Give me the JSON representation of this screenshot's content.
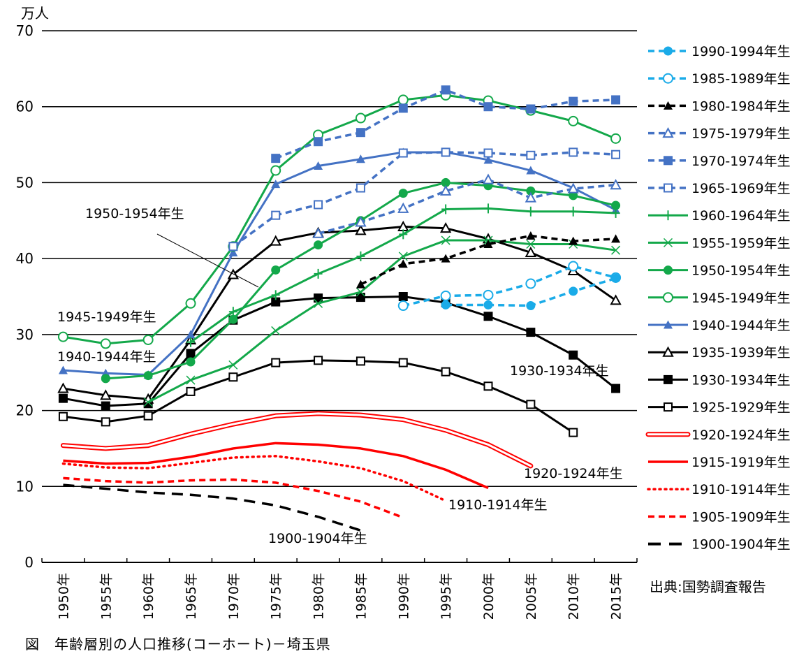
{
  "chart_data": {
    "type": "line",
    "title": "",
    "caption": "図　年齢層別の人口推移(コーホート)－埼玉県",
    "source": "出典:国勢調査報告",
    "ylabel": "万人",
    "xlabel": "",
    "ylim": [
      0,
      70
    ],
    "yticks": [
      0,
      10,
      20,
      30,
      40,
      50,
      60,
      70
    ],
    "grid": true,
    "legend_position": "right",
    "categories": [
      "1950年",
      "1955年",
      "1960年",
      "1965年",
      "1970年",
      "1975年",
      "1980年",
      "1985年",
      "1990年",
      "1995年",
      "2000年",
      "2005年",
      "2010年",
      "2015年"
    ],
    "series": [
      {
        "name": "1990-1994年生",
        "color": "#1aabe8",
        "dash": "dash",
        "marker": "circle-filled",
        "values": [
          null,
          null,
          null,
          null,
          null,
          null,
          null,
          null,
          null,
          33.9,
          33.9,
          33.8,
          35.7,
          37.4
        ]
      },
      {
        "name": "1985-1989年生",
        "color": "#1aabe8",
        "dash": "dash",
        "marker": "circle-open",
        "values": [
          null,
          null,
          null,
          null,
          null,
          null,
          null,
          null,
          33.8,
          35.1,
          35.2,
          36.7,
          39.0,
          37.5
        ]
      },
      {
        "name": "1980-1984年生",
        "color": "#000000",
        "dash": "dash",
        "marker": "triangle-filled",
        "values": [
          null,
          null,
          null,
          null,
          null,
          null,
          null,
          36.6,
          39.3,
          40.0,
          41.9,
          43.0,
          42.3,
          42.6
        ]
      },
      {
        "name": "1975-1979年生",
        "color": "#4472c4",
        "dash": "dash",
        "marker": "triangle-open",
        "values": [
          null,
          null,
          null,
          null,
          null,
          null,
          43.3,
          44.8,
          46.6,
          48.9,
          50.4,
          48.0,
          49.2,
          49.7
        ]
      },
      {
        "name": "1970-1974年生",
        "color": "#4472c4",
        "dash": "dash",
        "marker": "square-filled",
        "values": [
          null,
          null,
          null,
          null,
          null,
          53.2,
          55.4,
          56.6,
          59.8,
          62.2,
          60.0,
          59.7,
          60.7,
          60.9
        ]
      },
      {
        "name": "1965-1969年生",
        "color": "#4472c4",
        "dash": "dash",
        "marker": "square-open",
        "values": [
          null,
          null,
          null,
          null,
          41.6,
          45.7,
          47.1,
          49.3,
          53.9,
          54.0,
          53.9,
          53.6,
          54.0,
          53.7
        ]
      },
      {
        "name": "1960-1964年生",
        "color": "#13a84a",
        "dash": "solid",
        "marker": "plus",
        "values": [
          null,
          null,
          null,
          29.0,
          33.0,
          35.2,
          38.0,
          40.3,
          43.2,
          46.5,
          46.6,
          46.2,
          46.2,
          46.0
        ]
      },
      {
        "name": "1955-1959年生",
        "color": "#13a84a",
        "dash": "solid",
        "marker": "x",
        "values": [
          null,
          null,
          21.1,
          24.0,
          26.0,
          30.5,
          34.1,
          35.6,
          40.3,
          42.4,
          42.4,
          41.9,
          41.9,
          41.1
        ]
      },
      {
        "name": "1950-1954年生",
        "color": "#13a84a",
        "dash": "solid",
        "marker": "circle-filled",
        "values": [
          null,
          24.2,
          24.6,
          26.4,
          32.0,
          38.5,
          41.8,
          45.0,
          48.6,
          50.0,
          49.6,
          48.9,
          48.3,
          47.0
        ]
      },
      {
        "name": "1945-1949年生",
        "color": "#13a84a",
        "dash": "solid",
        "marker": "circle-open",
        "values": [
          29.7,
          28.8,
          29.3,
          34.1,
          41.6,
          51.6,
          56.3,
          58.5,
          60.9,
          61.5,
          60.8,
          59.5,
          58.1,
          55.8
        ]
      },
      {
        "name": "1940-1944年生",
        "color": "#4472c4",
        "dash": "solid",
        "marker": "triangle-filled",
        "values": [
          25.3,
          24.9,
          24.7,
          30.0,
          40.8,
          49.8,
          52.2,
          53.1,
          54.0,
          54.0,
          53.0,
          51.6,
          49.3,
          46.4
        ]
      },
      {
        "name": "1935-1939年生",
        "color": "#000000",
        "dash": "solid",
        "marker": "triangle-open",
        "values": [
          22.9,
          22.0,
          21.5,
          29.3,
          37.9,
          42.3,
          43.4,
          43.7,
          44.2,
          44.0,
          42.6,
          40.8,
          38.4,
          34.5
        ]
      },
      {
        "name": "1930-1934年生",
        "color": "#000000",
        "dash": "solid",
        "marker": "square-filled",
        "values": [
          21.6,
          20.6,
          20.9,
          27.5,
          31.9,
          34.3,
          34.8,
          34.9,
          35.0,
          34.2,
          32.4,
          30.3,
          27.3,
          22.9
        ]
      },
      {
        "name": "1925-1929年生",
        "color": "#000000",
        "dash": "solid",
        "marker": "square-open",
        "values": [
          19.2,
          18.5,
          19.3,
          22.5,
          24.4,
          26.3,
          26.6,
          26.5,
          26.3,
          25.1,
          23.2,
          20.8,
          17.1,
          null
        ]
      },
      {
        "name": "1920-1924年生",
        "color": "#ff0000",
        "dash": "double",
        "marker": "none",
        "values": [
          15.4,
          15.0,
          15.4,
          16.9,
          18.2,
          19.3,
          19.6,
          19.4,
          18.8,
          17.4,
          15.5,
          12.7,
          null,
          null
        ]
      },
      {
        "name": "1915-1919年生",
        "color": "#ff0000",
        "dash": "solid-thick",
        "marker": "none",
        "values": [
          13.4,
          13.0,
          13.1,
          13.9,
          15.0,
          15.7,
          15.5,
          15.0,
          14.0,
          12.2,
          9.8,
          null,
          null,
          null
        ]
      },
      {
        "name": "1910-1914年生",
        "color": "#ff0000",
        "dash": "dot",
        "marker": "none",
        "values": [
          13.0,
          12.5,
          12.4,
          13.1,
          13.8,
          14.0,
          13.3,
          12.4,
          10.7,
          8.1,
          null,
          null,
          null,
          null
        ]
      },
      {
        "name": "1905-1909年生",
        "color": "#ff0000",
        "dash": "dash",
        "marker": "none",
        "values": [
          11.1,
          10.7,
          10.5,
          10.8,
          10.9,
          10.5,
          9.4,
          8.0,
          5.9,
          null,
          null,
          null,
          null,
          null
        ]
      },
      {
        "name": "1900-1904年生",
        "color": "#000000",
        "dash": "longdash",
        "marker": "none",
        "values": [
          10.2,
          9.7,
          9.2,
          8.9,
          8.4,
          7.5,
          6.0,
          4.2,
          null,
          null,
          null,
          null,
          null,
          null
        ]
      }
    ],
    "annotations": [
      {
        "text": "1950-1954年生",
        "series": "1950-1954年生",
        "leader": true
      },
      {
        "text": "1945-1949年生",
        "series": "1945-1949年生",
        "leader": false
      },
      {
        "text": "1940-1944年生",
        "series": "1940-1944年生",
        "leader": false
      },
      {
        "text": "1930-1934年生",
        "series": "1930-1934年生",
        "leader": false
      },
      {
        "text": "1920-1924年生",
        "series": "1920-1924年生",
        "leader": false
      },
      {
        "text": "1910-1914年生",
        "series": "1910-1914年生",
        "leader": false
      },
      {
        "text": "1900-1904年生",
        "series": "1900-1904年生",
        "leader": false
      }
    ]
  }
}
